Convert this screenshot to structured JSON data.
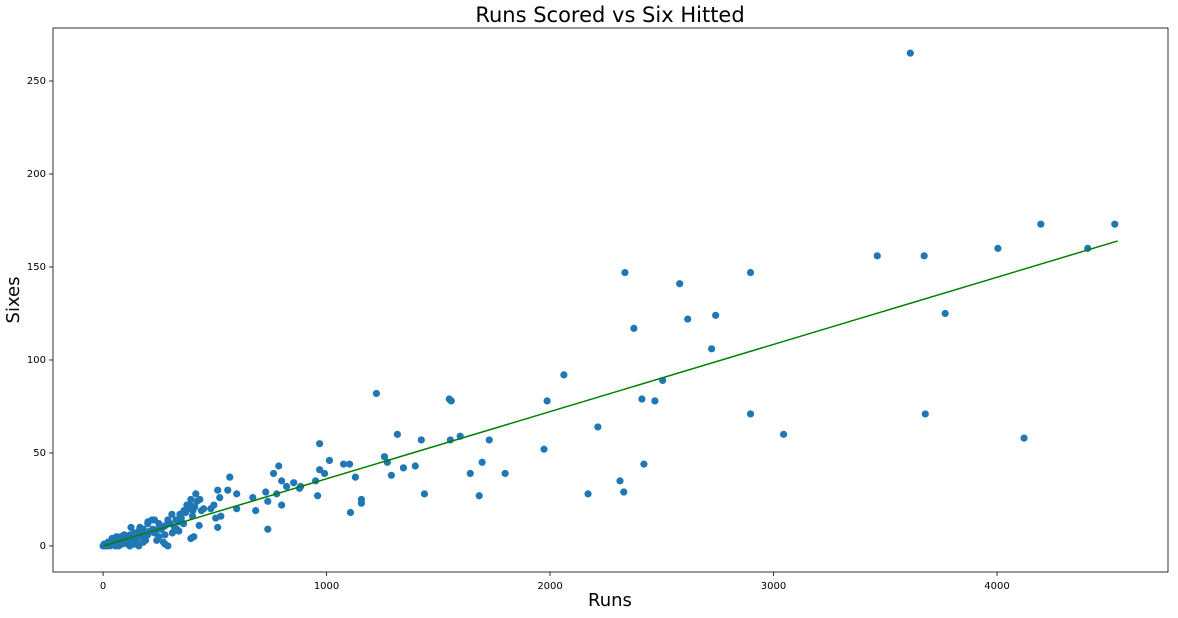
{
  "chart_data": {
    "type": "scatter",
    "title": "Runs Scored vs Six Hitted",
    "x_label": "Runs",
    "y_label": "Sixes",
    "xlim": [
      -224,
      4765
    ],
    "ylim": [
      -14,
      278.5
    ],
    "xticks": [
      0,
      1000,
      2000,
      3000,
      4000
    ],
    "yticks": [
      0,
      50,
      100,
      150,
      200,
      250
    ],
    "grid": false,
    "series": [
      {
        "color": "#1f77b4",
        "x": [
          3612,
          4527,
          4196,
          4406,
          4004,
          3464,
          3674,
          3768,
          2335,
          2897,
          2580,
          2375,
          2616,
          2741,
          2723,
          2504,
          2062,
          1987,
          2411,
          2469,
          1223,
          1549,
          1558,
          2214,
          2897,
          3679,
          3045,
          4121,
          969,
          1317,
          1424,
          1554,
          1598,
          1728,
          1973,
          1013,
          1076,
          1103,
          1259,
          1272,
          1344,
          1397,
          1696,
          1643,
          1799,
          2420,
          2313,
          1290,
          1129,
          969,
          991,
          951,
          960,
          786,
          763,
          799,
          821,
          853,
          884,
          879,
          728,
          737,
          777,
          799,
          670,
          683,
          598,
          567,
          598,
          558,
          522,
          513,
          482,
          496,
          504,
          527,
          513,
          1156,
          1156,
          1107,
          737,
          1438,
          1683,
          2170,
          2330,
          415,
          433,
          393,
          375,
          362,
          344,
          402,
          406,
          393,
          339,
          326,
          308,
          290,
          268,
          277,
          277,
          219,
          201,
          223,
          246,
          165,
          125,
          183,
          147,
          121,
          80,
          62,
          40,
          22,
          0,
          5,
          10,
          20,
          30,
          45,
          60,
          75,
          90,
          100,
          110,
          130,
          150,
          170,
          190,
          200,
          210,
          230,
          250,
          260,
          280,
          300,
          320,
          340,
          350,
          370,
          380,
          390,
          420,
          430,
          440,
          15,
          25,
          35,
          55,
          70,
          85,
          95,
          120,
          140,
          160,
          180,
          240,
          270,
          290,
          310,
          330,
          360,
          400,
          410,
          450,
          250,
          200,
          230,
          160,
          180,
          140,
          120,
          80,
          60,
          40
        ],
        "values": [
          265,
          173,
          173,
          160,
          160,
          156,
          156,
          125,
          147,
          147,
          141,
          117,
          122,
          124,
          106,
          89,
          92,
          78,
          79,
          78,
          82,
          79,
          78,
          64,
          71,
          71,
          60,
          58,
          55,
          60,
          57,
          57,
          59,
          57,
          52,
          46,
          44,
          44,
          48,
          45,
          42,
          43,
          45,
          39,
          39,
          44,
          35,
          38,
          37,
          41,
          39,
          35,
          27,
          43,
          39,
          35,
          32,
          34,
          32,
          31,
          29,
          24,
          28,
          22,
          26,
          19,
          28,
          37,
          20,
          30,
          26,
          30,
          20,
          22,
          15,
          16,
          10,
          25,
          23,
          18,
          9,
          28,
          27,
          28,
          29,
          28,
          25,
          25,
          22,
          19,
          17,
          19,
          5,
          4,
          8,
          14,
          17,
          14,
          10,
          6,
          1,
          14,
          13,
          9,
          9,
          10,
          10,
          6,
          5,
          6,
          5,
          4,
          3,
          2,
          0,
          1,
          0,
          1,
          0,
          2,
          1,
          3,
          2,
          4,
          1,
          3,
          2,
          5,
          3,
          6,
          8,
          7,
          5,
          9,
          11,
          12,
          10,
          13,
          15,
          18,
          20,
          22,
          24,
          11,
          19,
          0,
          2,
          1,
          0,
          0,
          1,
          6,
          0,
          1,
          0,
          2,
          3,
          2,
          0,
          7,
          9,
          12,
          16,
          21,
          20,
          12,
          12,
          14,
          8,
          9,
          7,
          5,
          4,
          5,
          4
        ]
      }
    ],
    "trend_line": {
      "color": "green",
      "x": [
        0,
        4540
      ],
      "values": [
        0,
        164
      ]
    }
  }
}
